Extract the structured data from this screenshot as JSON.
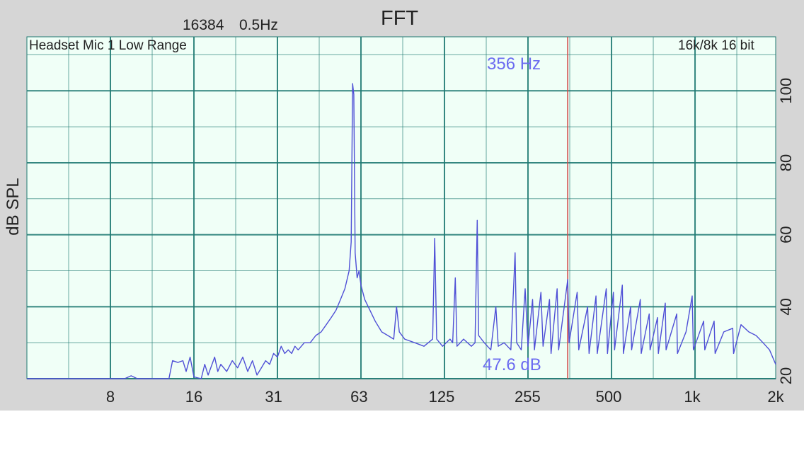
{
  "header": {
    "fft_size": "16384",
    "resolution": "0.5Hz",
    "title": "FFT"
  },
  "plot": {
    "input_label": "Headset Mic 1 Low Range",
    "format_label": "16k/8k 16 bit",
    "marker_freq_label": "356 Hz",
    "marker_level_label": "47.6 dB"
  },
  "colors": {
    "panel": "#d6d6d6",
    "plot_bg": "#f0fff7",
    "grid": "#1f7a72",
    "trace": "#4f4fd6",
    "marker": "#d24a4a",
    "marker_text": "#6b6bf0"
  },
  "chart_data": {
    "type": "line",
    "title": "FFT",
    "xlabel": "",
    "ylabel": "dB SPL",
    "x_scale": "log",
    "xlim": [
      4,
      2000
    ],
    "ylim": [
      20,
      115
    ],
    "x_ticks": [
      {
        "value": 8,
        "label": "8"
      },
      {
        "value": 16,
        "label": "16"
      },
      {
        "value": 31,
        "label": "31"
      },
      {
        "value": 63,
        "label": "63"
      },
      {
        "value": 125,
        "label": "125"
      },
      {
        "value": 255,
        "label": "255"
      },
      {
        "value": 500,
        "label": "500"
      },
      {
        "value": 1000,
        "label": "1k"
      },
      {
        "value": 2000,
        "label": "2k"
      }
    ],
    "y_ticks": [
      20,
      40,
      60,
      80,
      100
    ],
    "grid": true,
    "marker": {
      "freq": 356,
      "level": 47.6
    },
    "series": [
      {
        "points": [
          [
            4,
            20
          ],
          [
            9,
            20
          ],
          [
            9.5,
            20.8
          ],
          [
            10,
            20
          ],
          [
            13,
            20
          ],
          [
            13.4,
            25
          ],
          [
            14,
            24.5
          ],
          [
            14.6,
            25
          ],
          [
            15,
            22
          ],
          [
            15.5,
            26
          ],
          [
            16,
            20.5
          ],
          [
            17,
            20
          ],
          [
            17.5,
            24
          ],
          [
            18,
            21
          ],
          [
            19,
            26
          ],
          [
            19.5,
            22
          ],
          [
            20,
            24
          ],
          [
            21,
            22
          ],
          [
            22,
            25
          ],
          [
            23,
            23
          ],
          [
            24,
            26
          ],
          [
            25,
            22
          ],
          [
            26,
            25
          ],
          [
            27,
            21
          ],
          [
            28,
            23
          ],
          [
            29,
            25
          ],
          [
            30,
            24
          ],
          [
            31,
            27
          ],
          [
            32,
            26
          ],
          [
            33,
            29
          ],
          [
            34,
            27
          ],
          [
            35,
            28
          ],
          [
            36,
            27
          ],
          [
            37,
            29
          ],
          [
            38,
            28
          ],
          [
            40,
            30
          ],
          [
            42,
            30
          ],
          [
            44,
            32
          ],
          [
            46,
            33
          ],
          [
            48,
            35
          ],
          [
            50,
            37
          ],
          [
            52,
            39
          ],
          [
            54,
            42
          ],
          [
            56,
            45
          ],
          [
            58,
            50
          ],
          [
            59,
            58
          ],
          [
            59.7,
            102
          ],
          [
            60.3,
            99
          ],
          [
            61,
            55
          ],
          [
            62,
            48
          ],
          [
            63,
            50
          ],
          [
            64,
            46
          ],
          [
            66,
            42
          ],
          [
            68,
            40
          ],
          [
            72,
            36
          ],
          [
            76,
            33
          ],
          [
            80,
            32
          ],
          [
            84,
            31
          ],
          [
            86,
            40
          ],
          [
            88,
            33
          ],
          [
            92,
            31
          ],
          [
            100,
            30
          ],
          [
            108,
            29
          ],
          [
            116,
            31
          ],
          [
            118,
            59
          ],
          [
            120,
            31
          ],
          [
            126,
            29
          ],
          [
            134,
            31
          ],
          [
            137,
            30
          ],
          [
            140,
            48
          ],
          [
            142,
            29
          ],
          [
            150,
            31
          ],
          [
            160,
            29
          ],
          [
            165,
            30
          ],
          [
            168,
            64
          ],
          [
            170,
            32
          ],
          [
            178,
            30
          ],
          [
            188,
            28
          ],
          [
            196,
            40
          ],
          [
            200,
            29
          ],
          [
            210,
            30
          ],
          [
            222,
            28
          ],
          [
            230,
            55
          ],
          [
            233,
            30
          ],
          [
            242,
            28
          ],
          [
            250,
            45
          ],
          [
            256,
            29
          ],
          [
            266,
            42
          ],
          [
            270,
            28
          ],
          [
            285,
            44
          ],
          [
            290,
            29
          ],
          [
            306,
            42
          ],
          [
            310,
            27
          ],
          [
            326,
            45
          ],
          [
            330,
            28
          ],
          [
            356,
            47.6
          ],
          [
            360,
            30
          ],
          [
            385,
            44
          ],
          [
            390,
            28
          ],
          [
            420,
            40
          ],
          [
            425,
            27
          ],
          [
            450,
            43
          ],
          [
            455,
            27
          ],
          [
            490,
            45
          ],
          [
            495,
            27
          ],
          [
            520,
            44
          ],
          [
            525,
            28
          ],
          [
            560,
            46
          ],
          [
            565,
            27
          ],
          [
            600,
            40
          ],
          [
            605,
            28
          ],
          [
            650,
            42
          ],
          [
            655,
            27
          ],
          [
            700,
            38
          ],
          [
            705,
            28
          ],
          [
            750,
            37
          ],
          [
            755,
            27
          ],
          [
            800,
            41
          ],
          [
            805,
            28
          ],
          [
            880,
            38
          ],
          [
            885,
            27
          ],
          [
            950,
            33
          ],
          [
            1000,
            43
          ],
          [
            1010,
            28
          ],
          [
            1100,
            36
          ],
          [
            1110,
            28
          ],
          [
            1200,
            36
          ],
          [
            1210,
            27
          ],
          [
            1300,
            33
          ],
          [
            1400,
            34
          ],
          [
            1410,
            27
          ],
          [
            1500,
            35
          ],
          [
            1600,
            33
          ],
          [
            1700,
            32
          ],
          [
            1800,
            30
          ],
          [
            1900,
            28
          ],
          [
            2000,
            24
          ]
        ]
      }
    ]
  }
}
